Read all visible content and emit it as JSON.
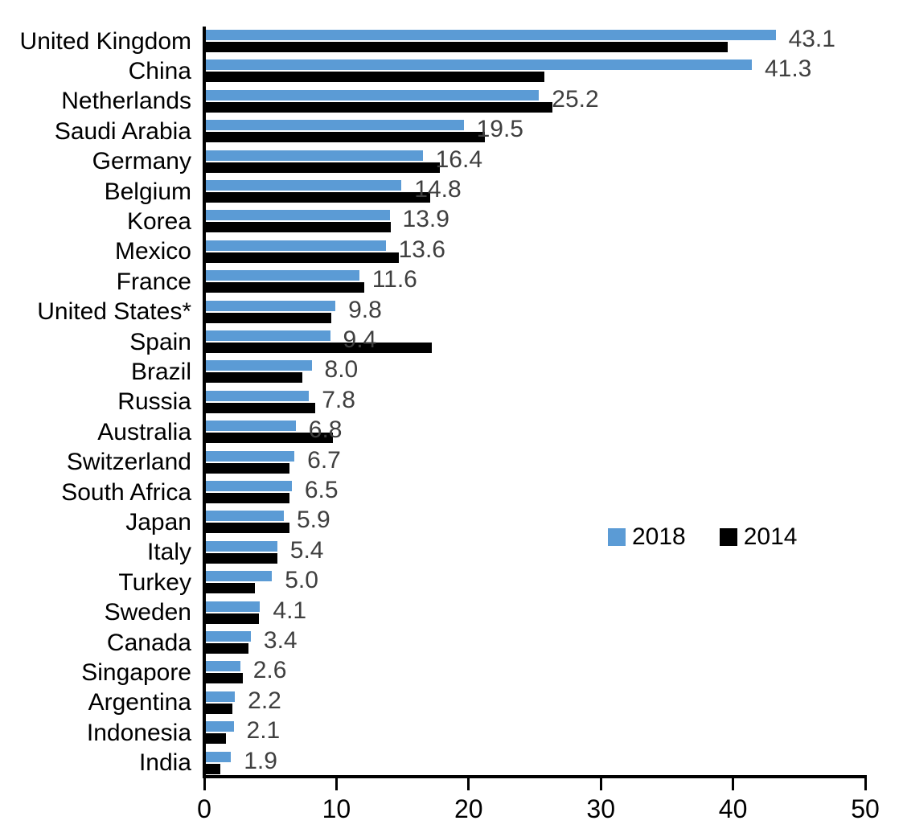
{
  "chart_data": {
    "type": "bar",
    "orientation": "horizontal",
    "title": "",
    "xlabel": "",
    "ylabel": "",
    "xlim": [
      0,
      50
    ],
    "x_ticks": [
      "0",
      "10",
      "20",
      "30",
      "40",
      "50"
    ],
    "grid": false,
    "legend_position": "middle-right",
    "categories": [
      "United Kingdom",
      "China",
      "Netherlands",
      "Saudi Arabia",
      "Germany",
      "Belgium",
      "Korea",
      "Mexico",
      "France",
      "United States*",
      "Spain",
      "Brazil",
      "Russia",
      "Australia",
      "Switzerland",
      "South Africa",
      "Japan",
      "Italy",
      "Turkey",
      "Sweden",
      "Canada",
      "Singapore",
      "Argentina",
      "Indonesia",
      "India"
    ],
    "series": [
      {
        "name": "2018",
        "color": "#5B9BD5",
        "values": [
          43.1,
          41.3,
          25.2,
          19.5,
          16.4,
          14.8,
          13.9,
          13.6,
          11.6,
          9.8,
          9.4,
          8.0,
          7.8,
          6.8,
          6.7,
          6.5,
          5.9,
          5.4,
          5.0,
          4.1,
          3.4,
          2.6,
          2.2,
          2.1,
          1.9
        ]
      },
      {
        "name": "2014",
        "color": "#000000",
        "values": [
          39.5,
          25.6,
          26.2,
          21.1,
          17.7,
          17.0,
          14.0,
          14.6,
          12.0,
          9.5,
          17.1,
          7.3,
          8.3,
          9.6,
          6.3,
          6.3,
          6.3,
          5.4,
          3.7,
          4.0,
          3.2,
          2.8,
          2.0,
          1.5,
          1.1
        ]
      }
    ],
    "data_labels": [
      "43.1",
      "41.3",
      "25.2",
      "19.5",
      "16.4",
      "14.8",
      "13.9",
      "13.6",
      "11.6",
      "9.8",
      "9.4",
      "8.0",
      "7.8",
      "6.8",
      "6.7",
      "6.5",
      "5.9",
      "5.4",
      "5.0",
      "4.1",
      "3.4",
      "2.6",
      "2.2",
      "2.1",
      "1.9"
    ],
    "data_label_color": "#3F3F3F",
    "axis_color": "#000000",
    "background_color": "#FFFFFF"
  }
}
